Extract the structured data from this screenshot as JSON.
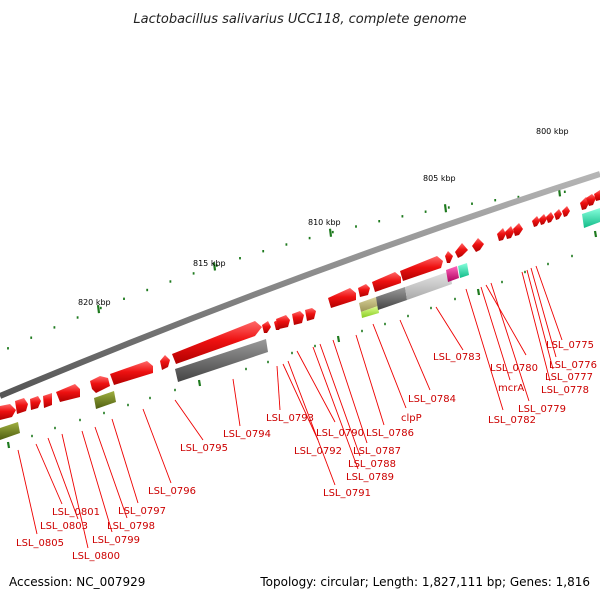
{
  "title": "Lactobacillus salivarius UCC118, complete genome",
  "footer": {
    "accession": "Accession: NC_007929",
    "summary": "Topology: circular; Length: 1,827,111 bp; Genes: 1,816"
  },
  "scale_labels": [
    "800 kbp",
    "805 kbp",
    "810 kbp",
    "815 kbp",
    "820 kbp"
  ],
  "gene_labels": [
    "LSL_0775",
    "LSL_0776",
    "LSL_0777",
    "LSL_0778",
    "LSL_0779",
    "LSL_0780",
    "mcrA",
    "LSL_0782",
    "LSL_0783",
    "LSL_0784",
    "clpP",
    "LSL_0786",
    "LSL_0787",
    "LSL_0788",
    "LSL_0789",
    "LSL_0790",
    "LSL_0791",
    "LSL_0792",
    "LSL_0793",
    "LSL_0794",
    "LSL_0795",
    "LSL_0796",
    "LSL_0797",
    "LSL_0798",
    "LSL_0799",
    "LSL_0800",
    "LSL_0801",
    "LSL_0803",
    "LSL_0805"
  ],
  "colors": {
    "backbone": "#8c8c8c",
    "cds": "#ee1111",
    "label": "#cc0000",
    "leader_line": "#ee0000",
    "tick": "#1e7a1e",
    "rna_gray": "#777777",
    "rna_light": "#c8c8c8",
    "olive": "#6b7d1f",
    "lime": "#b4ee44",
    "magenta": "#e6007a",
    "teal": "#22ddaa"
  }
}
